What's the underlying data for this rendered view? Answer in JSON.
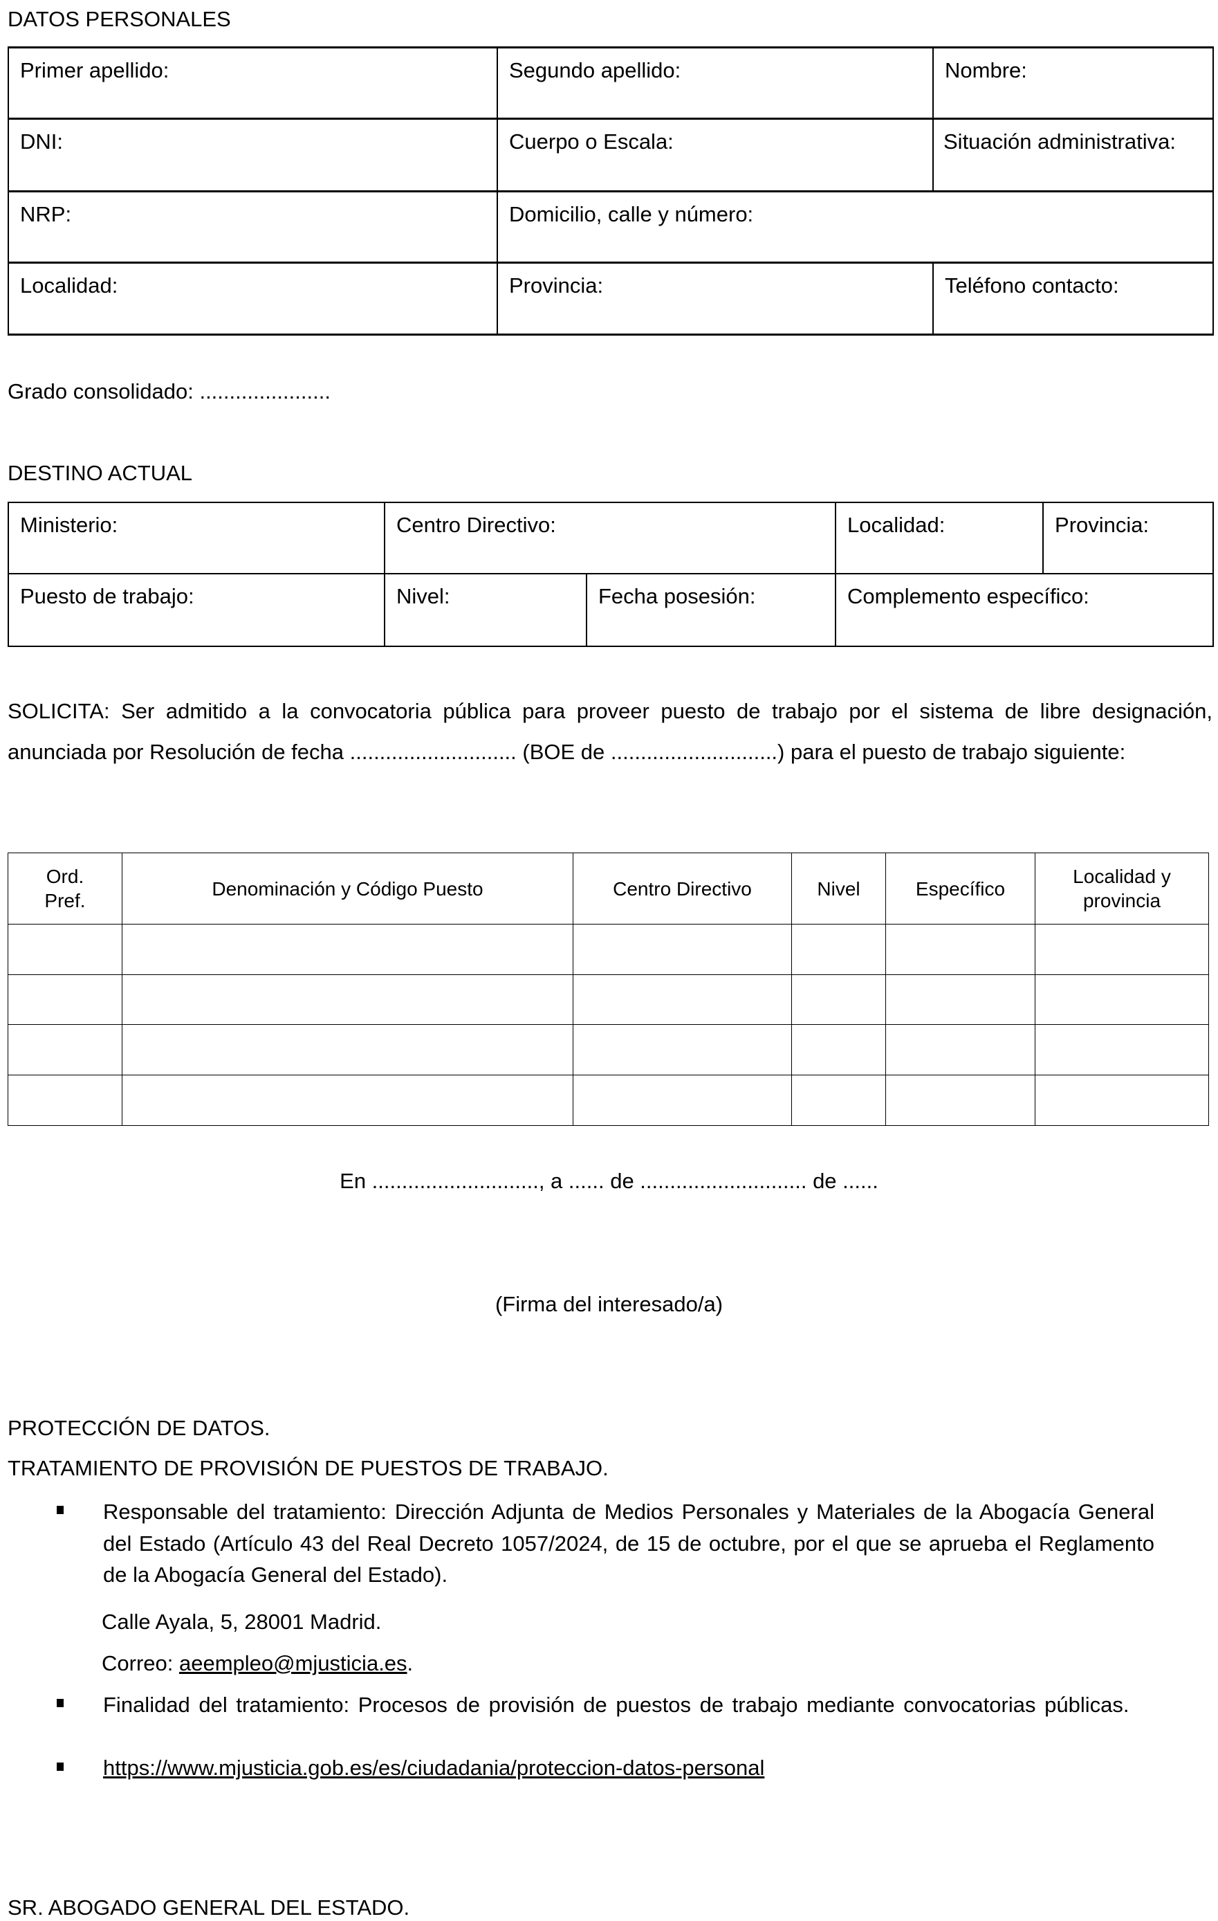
{
  "datos_personales": {
    "heading": "DATOS PERSONALES",
    "fields": [
      "Primer apellido:",
      "Segundo apellido:",
      "Nombre:",
      "DNI:",
      "Cuerpo o Escala:",
      "Situación administrativa:",
      "NRP:",
      "Domicilio, calle y número:",
      "Localidad:",
      "Provincia:",
      "Teléfono contacto:"
    ]
  },
  "grado": "Grado consolidado: ......................",
  "destino_actual": {
    "heading": "DESTINO ACTUAL",
    "fields": [
      "Ministerio:",
      "Centro Directivo:",
      "Localidad:",
      "Provincia:",
      "Puesto de trabajo:",
      "Nivel:",
      "Fecha posesión:",
      "Complemento específico:"
    ]
  },
  "solicita": "SOLICITA: Ser admitido a la convocatoria pública para proveer puesto de trabajo por el sistema de libre designación, anunciada por Resolución de fecha ............................ (BOE de ............................) para el puesto de trabajo siguiente:",
  "puestos_table": {
    "headers": [
      "Ord. Pref.",
      "Denominación y Código Puesto",
      "Centro Directivo",
      "Nivel",
      "Específico",
      "Localidad y provincia"
    ],
    "rows": [
      [
        "",
        "",
        "",
        "",
        "",
        ""
      ],
      [
        "",
        "",
        "",
        "",
        "",
        ""
      ],
      [
        "",
        "",
        "",
        "",
        "",
        ""
      ],
      [
        "",
        "",
        "",
        "",
        "",
        ""
      ]
    ]
  },
  "lugar_fecha": "En ............................, a ...... de ............................ de ......",
  "firma": "(Firma del interesado/a)",
  "proteccion": {
    "heading1": "PROTECCIÓN DE DATOS.",
    "heading2": "TRATAMIENTO DE PROVISIÓN DE PUESTOS DE TRABAJO.",
    "responsable": "Responsable del tratamiento: Dirección Adjunta de Medios Personales y Materiales de la Abogacía General del Estado (Artículo 43 del Real Decreto 1057/2024, de 15 de octubre, por el que se aprueba el Reglamento de la Abogacía General del Estado).",
    "direccion": "Calle Ayala, 5, 28001 Madrid.",
    "correo_label": "Correo: ",
    "correo": "aeempleo@mjusticia.es",
    "correo_end": ".",
    "finalidad": "Finalidad del tratamiento: Procesos de provisión de puestos de trabajo mediante convocatorias públicas.",
    "url": "https://www.mjusticia.gob.es/es/ciudadania/proteccion-datos-personal"
  },
  "destinatario": "SR. ABOGADO GENERAL DEL ESTADO."
}
